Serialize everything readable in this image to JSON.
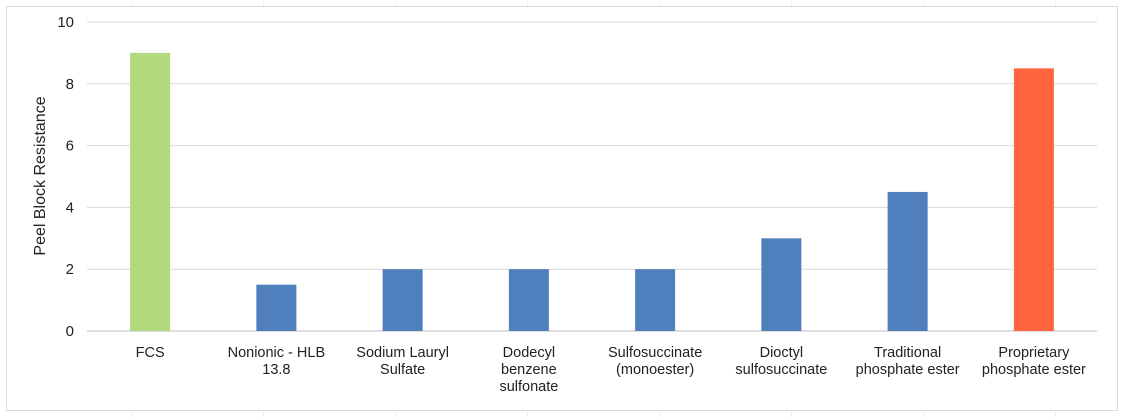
{
  "chart_data": {
    "type": "bar",
    "ylabel": "Peel Block Resistance",
    "ylim": [
      0,
      10
    ],
    "yticks": [
      0,
      2,
      4,
      6,
      8,
      10
    ],
    "grid": true,
    "categories": [
      [
        "FCS"
      ],
      [
        "Nonionic - HLB",
        "13.8"
      ],
      [
        "Sodium Lauryl",
        "Sulfate"
      ],
      [
        "Dodecyl",
        "benzene",
        "sulfonate"
      ],
      [
        "Sulfosuccinate",
        "(monoester)"
      ],
      [
        "Dioctyl",
        "sulfosuccinate"
      ],
      [
        "Traditional",
        "phosphate ester"
      ],
      [
        "Proprietary",
        "phosphate ester"
      ]
    ],
    "values": [
      9,
      1.5,
      2,
      2,
      2,
      3,
      4.5,
      8.5
    ],
    "colors": [
      "#b3d97f",
      "#4f7fbd",
      "#4f7fbd",
      "#4f7fbd",
      "#4f7fbd",
      "#4f7fbd",
      "#4f7fbd",
      "#ff6640"
    ]
  }
}
